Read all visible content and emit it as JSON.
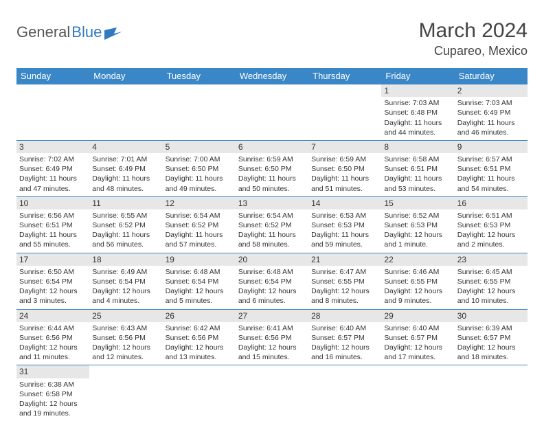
{
  "logo": {
    "part1": "General",
    "part2": "Blue"
  },
  "title": "March 2024",
  "location": "Cupareo, Mexico",
  "colors": {
    "header_bg": "#3a87c7",
    "header_text": "#ffffff",
    "daynum_bg": "#e7e7e7",
    "border": "#3a87c7",
    "text": "#333333",
    "background": "#ffffff"
  },
  "typography": {
    "title_fontsize": 30,
    "location_fontsize": 18,
    "header_fontsize": 13,
    "cell_fontsize": 10.5,
    "daynum_fontsize": 12
  },
  "weekdays": [
    "Sunday",
    "Monday",
    "Tuesday",
    "Wednesday",
    "Thursday",
    "Friday",
    "Saturday"
  ],
  "grid": [
    [
      {
        "day": "",
        "sunrise": "",
        "sunset": "",
        "daylight": ""
      },
      {
        "day": "",
        "sunrise": "",
        "sunset": "",
        "daylight": ""
      },
      {
        "day": "",
        "sunrise": "",
        "sunset": "",
        "daylight": ""
      },
      {
        "day": "",
        "sunrise": "",
        "sunset": "",
        "daylight": ""
      },
      {
        "day": "",
        "sunrise": "",
        "sunset": "",
        "daylight": ""
      },
      {
        "day": "1",
        "sunrise": "Sunrise: 7:03 AM",
        "sunset": "Sunset: 6:48 PM",
        "daylight": "Daylight: 11 hours and 44 minutes."
      },
      {
        "day": "2",
        "sunrise": "Sunrise: 7:03 AM",
        "sunset": "Sunset: 6:49 PM",
        "daylight": "Daylight: 11 hours and 46 minutes."
      }
    ],
    [
      {
        "day": "3",
        "sunrise": "Sunrise: 7:02 AM",
        "sunset": "Sunset: 6:49 PM",
        "daylight": "Daylight: 11 hours and 47 minutes."
      },
      {
        "day": "4",
        "sunrise": "Sunrise: 7:01 AM",
        "sunset": "Sunset: 6:49 PM",
        "daylight": "Daylight: 11 hours and 48 minutes."
      },
      {
        "day": "5",
        "sunrise": "Sunrise: 7:00 AM",
        "sunset": "Sunset: 6:50 PM",
        "daylight": "Daylight: 11 hours and 49 minutes."
      },
      {
        "day": "6",
        "sunrise": "Sunrise: 6:59 AM",
        "sunset": "Sunset: 6:50 PM",
        "daylight": "Daylight: 11 hours and 50 minutes."
      },
      {
        "day": "7",
        "sunrise": "Sunrise: 6:59 AM",
        "sunset": "Sunset: 6:50 PM",
        "daylight": "Daylight: 11 hours and 51 minutes."
      },
      {
        "day": "8",
        "sunrise": "Sunrise: 6:58 AM",
        "sunset": "Sunset: 6:51 PM",
        "daylight": "Daylight: 11 hours and 53 minutes."
      },
      {
        "day": "9",
        "sunrise": "Sunrise: 6:57 AM",
        "sunset": "Sunset: 6:51 PM",
        "daylight": "Daylight: 11 hours and 54 minutes."
      }
    ],
    [
      {
        "day": "10",
        "sunrise": "Sunrise: 6:56 AM",
        "sunset": "Sunset: 6:51 PM",
        "daylight": "Daylight: 11 hours and 55 minutes."
      },
      {
        "day": "11",
        "sunrise": "Sunrise: 6:55 AM",
        "sunset": "Sunset: 6:52 PM",
        "daylight": "Daylight: 11 hours and 56 minutes."
      },
      {
        "day": "12",
        "sunrise": "Sunrise: 6:54 AM",
        "sunset": "Sunset: 6:52 PM",
        "daylight": "Daylight: 11 hours and 57 minutes."
      },
      {
        "day": "13",
        "sunrise": "Sunrise: 6:54 AM",
        "sunset": "Sunset: 6:52 PM",
        "daylight": "Daylight: 11 hours and 58 minutes."
      },
      {
        "day": "14",
        "sunrise": "Sunrise: 6:53 AM",
        "sunset": "Sunset: 6:53 PM",
        "daylight": "Daylight: 11 hours and 59 minutes."
      },
      {
        "day": "15",
        "sunrise": "Sunrise: 6:52 AM",
        "sunset": "Sunset: 6:53 PM",
        "daylight": "Daylight: 12 hours and 1 minute."
      },
      {
        "day": "16",
        "sunrise": "Sunrise: 6:51 AM",
        "sunset": "Sunset: 6:53 PM",
        "daylight": "Daylight: 12 hours and 2 minutes."
      }
    ],
    [
      {
        "day": "17",
        "sunrise": "Sunrise: 6:50 AM",
        "sunset": "Sunset: 6:54 PM",
        "daylight": "Daylight: 12 hours and 3 minutes."
      },
      {
        "day": "18",
        "sunrise": "Sunrise: 6:49 AM",
        "sunset": "Sunset: 6:54 PM",
        "daylight": "Daylight: 12 hours and 4 minutes."
      },
      {
        "day": "19",
        "sunrise": "Sunrise: 6:48 AM",
        "sunset": "Sunset: 6:54 PM",
        "daylight": "Daylight: 12 hours and 5 minutes."
      },
      {
        "day": "20",
        "sunrise": "Sunrise: 6:48 AM",
        "sunset": "Sunset: 6:54 PM",
        "daylight": "Daylight: 12 hours and 6 minutes."
      },
      {
        "day": "21",
        "sunrise": "Sunrise: 6:47 AM",
        "sunset": "Sunset: 6:55 PM",
        "daylight": "Daylight: 12 hours and 8 minutes."
      },
      {
        "day": "22",
        "sunrise": "Sunrise: 6:46 AM",
        "sunset": "Sunset: 6:55 PM",
        "daylight": "Daylight: 12 hours and 9 minutes."
      },
      {
        "day": "23",
        "sunrise": "Sunrise: 6:45 AM",
        "sunset": "Sunset: 6:55 PM",
        "daylight": "Daylight: 12 hours and 10 minutes."
      }
    ],
    [
      {
        "day": "24",
        "sunrise": "Sunrise: 6:44 AM",
        "sunset": "Sunset: 6:56 PM",
        "daylight": "Daylight: 12 hours and 11 minutes."
      },
      {
        "day": "25",
        "sunrise": "Sunrise: 6:43 AM",
        "sunset": "Sunset: 6:56 PM",
        "daylight": "Daylight: 12 hours and 12 minutes."
      },
      {
        "day": "26",
        "sunrise": "Sunrise: 6:42 AM",
        "sunset": "Sunset: 6:56 PM",
        "daylight": "Daylight: 12 hours and 13 minutes."
      },
      {
        "day": "27",
        "sunrise": "Sunrise: 6:41 AM",
        "sunset": "Sunset: 6:56 PM",
        "daylight": "Daylight: 12 hours and 15 minutes."
      },
      {
        "day": "28",
        "sunrise": "Sunrise: 6:40 AM",
        "sunset": "Sunset: 6:57 PM",
        "daylight": "Daylight: 12 hours and 16 minutes."
      },
      {
        "day": "29",
        "sunrise": "Sunrise: 6:40 AM",
        "sunset": "Sunset: 6:57 PM",
        "daylight": "Daylight: 12 hours and 17 minutes."
      },
      {
        "day": "30",
        "sunrise": "Sunrise: 6:39 AM",
        "sunset": "Sunset: 6:57 PM",
        "daylight": "Daylight: 12 hours and 18 minutes."
      }
    ],
    [
      {
        "day": "31",
        "sunrise": "Sunrise: 6:38 AM",
        "sunset": "Sunset: 6:58 PM",
        "daylight": "Daylight: 12 hours and 19 minutes."
      },
      {
        "day": "",
        "sunrise": "",
        "sunset": "",
        "daylight": ""
      },
      {
        "day": "",
        "sunrise": "",
        "sunset": "",
        "daylight": ""
      },
      {
        "day": "",
        "sunrise": "",
        "sunset": "",
        "daylight": ""
      },
      {
        "day": "",
        "sunrise": "",
        "sunset": "",
        "daylight": ""
      },
      {
        "day": "",
        "sunrise": "",
        "sunset": "",
        "daylight": ""
      },
      {
        "day": "",
        "sunrise": "",
        "sunset": "",
        "daylight": ""
      }
    ]
  ]
}
